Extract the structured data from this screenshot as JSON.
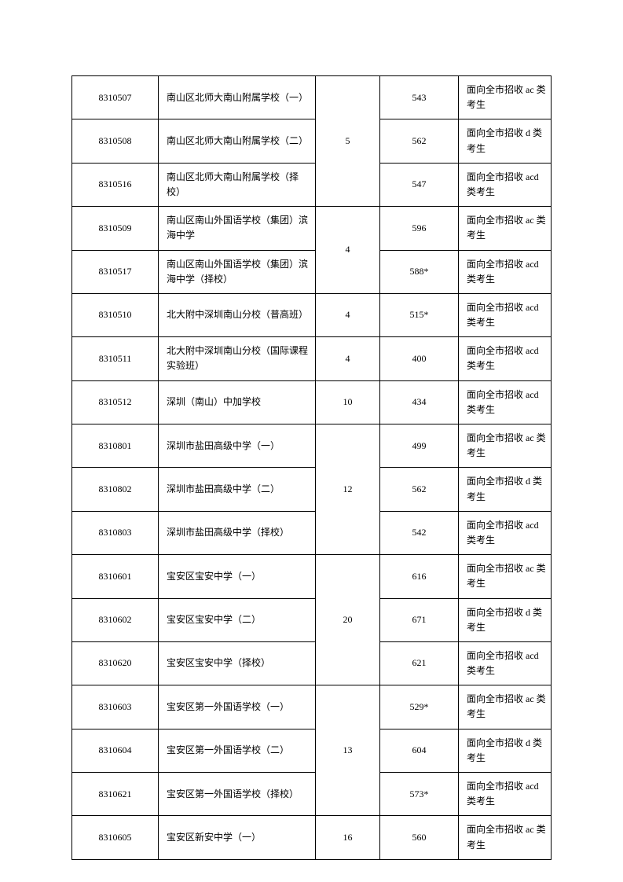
{
  "table": {
    "rows": [
      {
        "code": "8310507",
        "name": "南山区北师大南山附属学校（一）",
        "class_count": "",
        "score": "543",
        "note": "面向全市招收 ac 类考生",
        "rowspan_class": 3,
        "class_value": "5"
      },
      {
        "code": "8310508",
        "name": "南山区北师大南山附属学校（二）",
        "class_count": null,
        "score": "562",
        "note": "面向全市招收 d 类考生"
      },
      {
        "code": "8310516",
        "name": "南山区北师大南山附属学校（择校）",
        "class_count": null,
        "score": "547",
        "note": "面向全市招收 acd 类考生"
      },
      {
        "code": "8310509",
        "name": "南山区南山外国语学校（集团）滨海中学",
        "class_count": "",
        "score": "596",
        "note": "面向全市招收 ac 类考生",
        "rowspan_class": 2,
        "class_value": "4"
      },
      {
        "code": "8310517",
        "name": "南山区南山外国语学校（集团）滨海中学（择校）",
        "class_count": null,
        "score": "588*",
        "note": "面向全市招收 acd 类考生"
      },
      {
        "code": "8310510",
        "name": "北大附中深圳南山分校（普高班）",
        "class_count": "4",
        "score": "515*",
        "note": "面向全市招收 acd 类考生"
      },
      {
        "code": "8310511",
        "name": "北大附中深圳南山分校（国际课程实验班）",
        "class_count": "4",
        "score": "400",
        "note": "面向全市招收 acd 类考生"
      },
      {
        "code": "8310512",
        "name": "深圳（南山）中加学校",
        "class_count": "10",
        "score": "434",
        "note": "面向全市招收 acd 类考生"
      },
      {
        "code": "8310801",
        "name": "深圳市盐田高级中学（一）",
        "class_count": "",
        "score": "499",
        "note": "面向全市招收 ac 类考生",
        "rowspan_class": 3,
        "class_value": "12"
      },
      {
        "code": "8310802",
        "name": "深圳市盐田高级中学（二）",
        "class_count": null,
        "score": "562",
        "note": "面向全市招收 d 类考生"
      },
      {
        "code": "8310803",
        "name": "深圳市盐田高级中学（择校）",
        "class_count": null,
        "score": "542",
        "note": "面向全市招收 acd 类考生"
      },
      {
        "code": "8310601",
        "name": "宝安区宝安中学（一）",
        "class_count": "",
        "score": "616",
        "note": "面向全市招收 ac 类考生",
        "rowspan_class": 3,
        "class_value": "20"
      },
      {
        "code": "8310602",
        "name": "宝安区宝安中学（二）",
        "class_count": null,
        "score": "671",
        "note": "面向全市招收 d 类考生"
      },
      {
        "code": "8310620",
        "name": "宝安区宝安中学（择校）",
        "class_count": null,
        "score": "621",
        "note": "面向全市招收 acd 类考生"
      },
      {
        "code": "8310603",
        "name": "宝安区第一外国语学校（一）",
        "class_count": "",
        "score": "529*",
        "note": "面向全市招收 ac 类考生",
        "rowspan_class": 3,
        "class_value": "13"
      },
      {
        "code": "8310604",
        "name": "宝安区第一外国语学校（二）",
        "class_count": null,
        "score": "604",
        "note": "面向全市招收 d 类考生"
      },
      {
        "code": "8310621",
        "name": "宝安区第一外国语学校（择校）",
        "class_count": null,
        "score": "573*",
        "note": "面向全市招收 acd 类考生"
      },
      {
        "code": "8310605",
        "name": "宝安区新安中学（一）",
        "class_count": "16",
        "score": "560",
        "note": "面向全市招收 ac 类考生"
      }
    ],
    "style": {
      "border_color": "#000000",
      "font_size": 12,
      "background_color": "#ffffff",
      "text_color": "#000000"
    }
  }
}
